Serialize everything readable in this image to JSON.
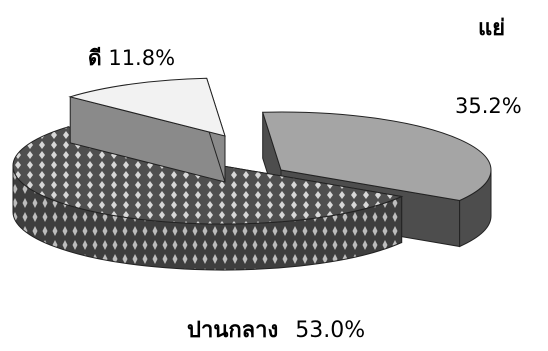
{
  "chart_data": {
    "type": "pie",
    "title": "",
    "slices": [
      {
        "label": "แย่",
        "value": 35.2,
        "value_text": "35.2%",
        "fill": "#a5a5a5",
        "side": "#4d4d4d"
      },
      {
        "label": "ปานกลาง",
        "value": 53.0,
        "value_text": "53.0%",
        "fill": "#5a5a5a",
        "side": "#3a3a3a",
        "pattern": "diamonds"
      },
      {
        "label": "ดี",
        "value": 11.8,
        "value_text": "11.8%",
        "fill": "#f2f2f2",
        "side": "#8a8a8a"
      }
    ],
    "style": "3d-exploded"
  }
}
